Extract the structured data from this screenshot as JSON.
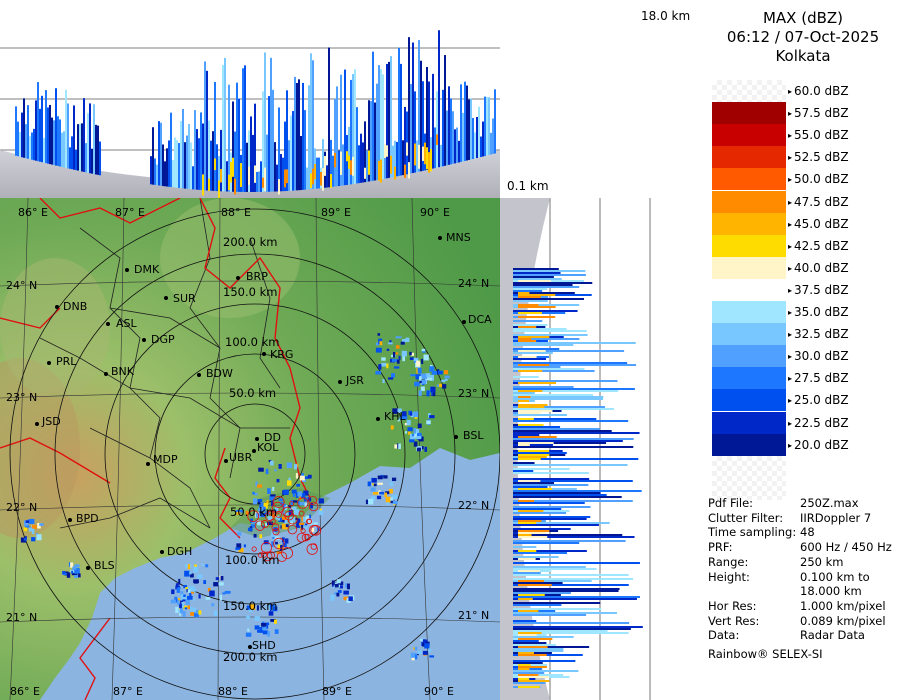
{
  "header": {
    "product": "MAX (dBZ)",
    "datetime": "06:12 / 07-Oct-2025",
    "station": "Kolkata"
  },
  "top_height_label": "18.0 km",
  "low_height_label": "0.1 km",
  "legend": {
    "items": [
      {
        "label": "60.0 dBZ",
        "color": "transparent"
      },
      {
        "label": "57.5 dBZ",
        "color": "#a00000"
      },
      {
        "label": "55.0 dBZ",
        "color": "#c80000"
      },
      {
        "label": "52.5 dBZ",
        "color": "#e62800"
      },
      {
        "label": "50.0 dBZ",
        "color": "#ff5a00"
      },
      {
        "label": "47.5 dBZ",
        "color": "#ff8c00"
      },
      {
        "label": "45.0 dBZ",
        "color": "#ffb400"
      },
      {
        "label": "42.5 dBZ",
        "color": "#ffdc00"
      },
      {
        "label": "40.0 dBZ",
        "color": "#fff5c8"
      },
      {
        "label": "37.5 dBZ",
        "color": "#ffffff"
      },
      {
        "label": "35.0 dBZ",
        "color": "#a0e6ff"
      },
      {
        "label": "32.5 dBZ",
        "color": "#78c8ff"
      },
      {
        "label": "30.0 dBZ",
        "color": "#50a0ff"
      },
      {
        "label": "27.5 dBZ",
        "color": "#1e78ff"
      },
      {
        "label": "25.0 dBZ",
        "color": "#0050f0"
      },
      {
        "label": "22.5 dBZ",
        "color": "#0028c8"
      },
      {
        "label": "20.0 dBZ",
        "color": "#001896"
      }
    ]
  },
  "info": [
    {
      "key": "Pdf File:",
      "value": "250Z.max"
    },
    {
      "key": "Clutter Filter:",
      "value": "IIRDoppler 7"
    },
    {
      "key": "Time sampling:",
      "value": "48"
    },
    {
      "key": "PRF:",
      "value": "600 Hz / 450 Hz"
    },
    {
      "key": "Range:",
      "value": "250 km"
    },
    {
      "key": "Height:",
      "value": "0.100 km to"
    },
    {
      "key": "",
      "value": "18.000 km"
    },
    {
      "key": "Hor Res:",
      "value": "1.000 km/pixel"
    },
    {
      "key": "Vert Res:",
      "value": "0.089 km/pixel"
    },
    {
      "key": "Data:",
      "value": "Radar Data"
    }
  ],
  "footer": "Rainbow® SELEX-SI",
  "map": {
    "lon_labels": [
      "86° E",
      "87° E",
      "88° E",
      "89° E",
      "90° E"
    ],
    "lat_labels": [
      "24° N",
      "23° N",
      "22° N",
      "21° N"
    ],
    "range_labels": [
      "50.0 km",
      "100.0 km",
      "150.0 km",
      "200.0 km"
    ],
    "stations": [
      "MNS",
      "DMK",
      "BRP",
      "SUR",
      "DNB",
      "ASL",
      "DGP",
      "KRG",
      "DCA",
      "PRL",
      "BNK",
      "BDW",
      "JSR",
      "KHL",
      "JSD",
      "DD",
      "BSL",
      "MDP",
      "UBR",
      "KOL",
      "BPD",
      "DGH",
      "BLS",
      "SHD"
    ]
  }
}
